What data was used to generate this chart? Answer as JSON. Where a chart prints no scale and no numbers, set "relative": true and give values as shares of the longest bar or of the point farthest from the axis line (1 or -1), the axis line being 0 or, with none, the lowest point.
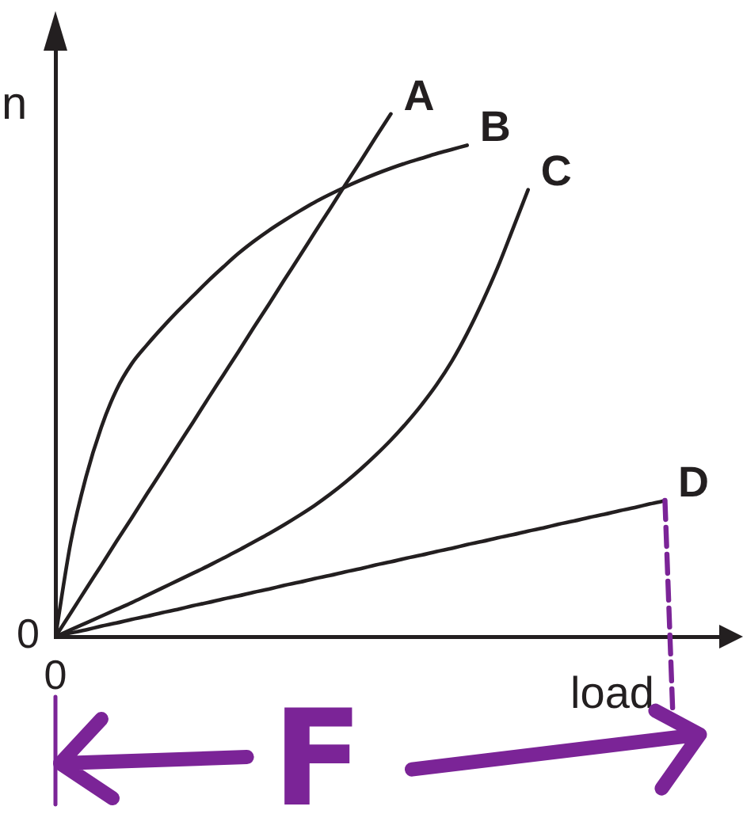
{
  "chart_data": {
    "type": "line",
    "relative": true,
    "xlabel": "load",
    "ylabel": "n",
    "annotations": [
      "0",
      "0",
      "F"
    ],
    "categories": [
      null,
      null,
      null,
      null,
      null,
      null,
      null,
      null,
      null,
      null,
      null,
      null,
      null,
      null,
      null,
      null,
      null,
      null,
      null,
      null,
      null,
      null,
      null,
      null,
      null,
      null,
      null,
      null,
      null,
      null,
      null,
      null,
      null,
      null,
      null,
      null,
      null,
      null,
      null,
      null,
      null
    ],
    "series": [
      {
        "name": "A",
        "color": "#231f20",
        "values": [
          0,
          0.045,
          0.091,
          0.136,
          0.182,
          0.227,
          0.273,
          0.318,
          0.364,
          0.409,
          0.455,
          0.5,
          0.545,
          0.591,
          0.636,
          0.682,
          0.727,
          0.773,
          0.818,
          0.864,
          0.909,
          0.955,
          1,
          null,
          null,
          null,
          null,
          null,
          null,
          null,
          null,
          null,
          null,
          null,
          null,
          null,
          null,
          null,
          null,
          null,
          null
        ]
      },
      {
        "name": "B",
        "color": "#231f20",
        "values": [
          0,
          0.18,
          0.305,
          0.4,
          0.472,
          0.522,
          0.558,
          0.591,
          0.622,
          0.651,
          0.68,
          0.707,
          0.733,
          0.756,
          0.777,
          0.796,
          0.814,
          0.831,
          0.846,
          0.86,
          0.873,
          0.885,
          0.896,
          0.906,
          0.915,
          0.924,
          0.932,
          0.94,
          null,
          null,
          null,
          null,
          null,
          null,
          null,
          null,
          null,
          null,
          null,
          null,
          null
        ]
      },
      {
        "name": "C",
        "color": "#231f20",
        "values": [
          0,
          0.013,
          0.026,
          0.039,
          0.052,
          0.065,
          0.079,
          0.093,
          0.107,
          0.121,
          0.135,
          0.15,
          0.165,
          0.181,
          0.197,
          0.214,
          0.232,
          0.251,
          0.272,
          0.295,
          0.32,
          0.347,
          0.376,
          0.408,
          0.443,
          0.482,
          0.527,
          0.58,
          0.64,
          0.706,
          0.78,
          0.855,
          null,
          null,
          null,
          null,
          null,
          null,
          null,
          null,
          null
        ]
      },
      {
        "name": "D",
        "color": "#231f20",
        "values": [
          0,
          0.007,
          0.013,
          0.02,
          0.026,
          0.033,
          0.039,
          0.046,
          0.052,
          0.059,
          0.065,
          0.072,
          0.078,
          0.085,
          0.091,
          0.098,
          0.104,
          0.111,
          0.117,
          0.124,
          0.13,
          0.137,
          0.143,
          0.15,
          0.156,
          0.163,
          0.169,
          0.176,
          0.182,
          0.189,
          0.195,
          0.202,
          0.208,
          0.215,
          0.221,
          0.228,
          0.234,
          0.241,
          0.247,
          0.254,
          0.26
        ]
      }
    ]
  }
}
